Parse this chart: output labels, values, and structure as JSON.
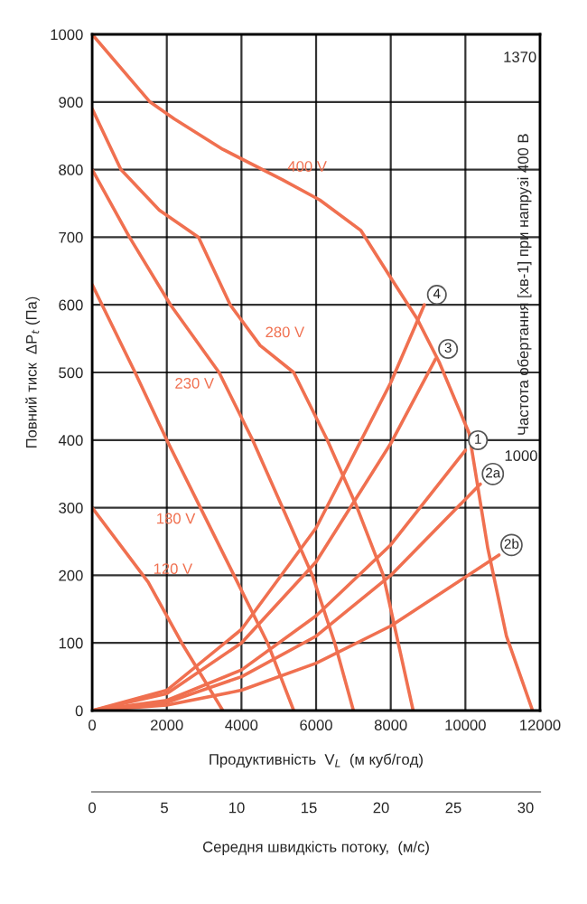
{
  "chart_data": {
    "type": "line",
    "xlabel": "Продуктивність  V$_{L}$  (м куб/год)",
    "ylabel": "Повний тиск  ΔP$_{t}$ (Па)",
    "x2label": "Середня швидкість потоку,  (м/с)",
    "xlim": [
      0,
      12000
    ],
    "xticks": [
      0,
      2000,
      4000,
      6000,
      8000,
      10000,
      12000
    ],
    "ylim": [
      0,
      1000
    ],
    "yticks": [
      0,
      100,
      200,
      300,
      400,
      500,
      600,
      700,
      800,
      900,
      1000
    ],
    "x2lim": [
      0,
      31
    ],
    "x2ticks": [
      0,
      5,
      10,
      15,
      20,
      25,
      30
    ],
    "grid": true,
    "marker": "none",
    "line_style": "solid",
    "series": [
      {
        "name": "400 V",
        "color": "#f07050",
        "x": [
          0,
          1550,
          2200,
          3500,
          5100,
          6100,
          7200,
          8000,
          8700,
          9300,
          10100,
          10600,
          11100,
          11800
        ],
        "values": [
          1000,
          900,
          875,
          830,
          785,
          755,
          710,
          640,
          580,
          515,
          410,
          240,
          110,
          0
        ]
      },
      {
        "name": "280 V",
        "color": "#f07050",
        "x": [
          0,
          770,
          1800,
          2850,
          3700,
          4500,
          5400,
          6300,
          7100,
          7800,
          8600
        ],
        "values": [
          890,
          800,
          740,
          700,
          600,
          540,
          500,
          400,
          300,
          200,
          0
        ]
      },
      {
        "name": "230 V",
        "color": "#f07050",
        "x": [
          0,
          1000,
          2100,
          3400,
          4300,
          5100,
          5900,
          6500,
          7000
        ],
        "values": [
          800,
          700,
          600,
          500,
          400,
          300,
          200,
          100,
          0
        ]
      },
      {
        "name": "180 V",
        "color": "#f07050",
        "x": [
          0,
          1150,
          2000,
          2900,
          3800,
          4700,
          5400
        ],
        "values": [
          630,
          500,
          400,
          300,
          200,
          100,
          0
        ]
      },
      {
        "name": "120 V",
        "color": "#f07050",
        "x": [
          0,
          1500,
          2400,
          3500
        ],
        "values": [
          300,
          190,
          100,
          0
        ]
      },
      {
        "name": "4",
        "color": "#f07050",
        "x": [
          0,
          2000,
          4000,
          6000,
          8000,
          8900
        ],
        "values": [
          0,
          30,
          120,
          270,
          485,
          600
        ]
      },
      {
        "name": "3",
        "color": "#f07050",
        "x": [
          0,
          2000,
          4000,
          6000,
          8000,
          9200
        ],
        "values": [
          0,
          25,
          100,
          220,
          395,
          520
        ]
      },
      {
        "name": "1",
        "color": "#f07050",
        "x": [
          0,
          2000,
          4000,
          6000,
          8000,
          10000
        ],
        "values": [
          0,
          15,
          60,
          140,
          245,
          385
        ]
      },
      {
        "name": "2a",
        "color": "#f07050",
        "x": [
          0,
          2000,
          4000,
          6000,
          8000,
          10400
        ],
        "values": [
          0,
          12,
          50,
          110,
          200,
          335
        ]
      },
      {
        "name": "2b",
        "color": "#f07050",
        "x": [
          0,
          2000,
          4000,
          6000,
          8000,
          10900
        ],
        "values": [
          0,
          8,
          30,
          70,
          125,
          230
        ]
      }
    ],
    "annotations": [
      "1370",
      "Частота обертання [хв-1] при напрузі 400 В",
      "1000"
    ]
  }
}
